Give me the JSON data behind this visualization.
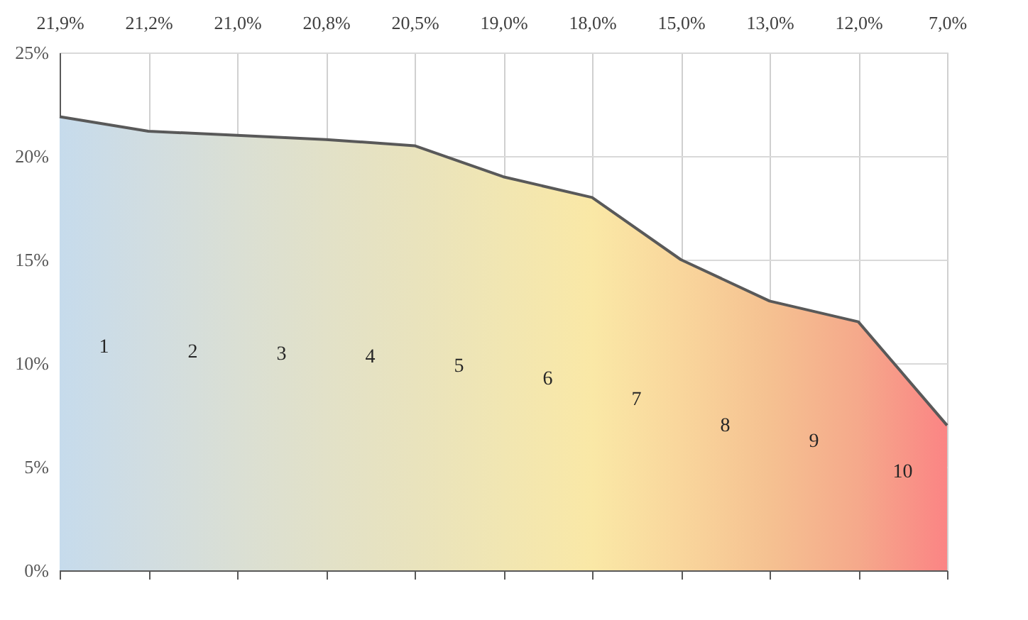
{
  "chart_data": {
    "type": "area",
    "categories": [
      "21,9%",
      "21,2%",
      "21,0%",
      "20,8%",
      "20,5%",
      "19,0%",
      "18,0%",
      "15,0%",
      "13,0%",
      "12,0%",
      "7,0%"
    ],
    "values": [
      21.9,
      21.2,
      21.0,
      20.8,
      20.5,
      19.0,
      18.0,
      15.0,
      13.0,
      12.0,
      7.0
    ],
    "color": "#595959",
    "colors": [
      "#c6dbec",
      "#d1dde1",
      "#dadfd4",
      "#e2e1c8",
      "#e9e3bd",
      "#f1e6b2",
      "#fae8a6",
      "#f9d69c",
      "#f5c191",
      "#f5a98b",
      "#fb8484"
    ],
    "ylim": [
      0,
      25
    ],
    "yticks": [
      {
        "value": 0,
        "label": "0%"
      },
      {
        "value": 5,
        "label": "5%"
      },
      {
        "value": 10,
        "label": "10%"
      },
      {
        "value": 15,
        "label": "15%"
      },
      {
        "value": 20,
        "label": "20%"
      },
      {
        "value": 25,
        "label": "25%"
      }
    ],
    "grid": true,
    "annotations": [
      "1",
      "2",
      "3",
      "4",
      "5",
      "6",
      "7",
      "8",
      "9",
      "10"
    ]
  }
}
